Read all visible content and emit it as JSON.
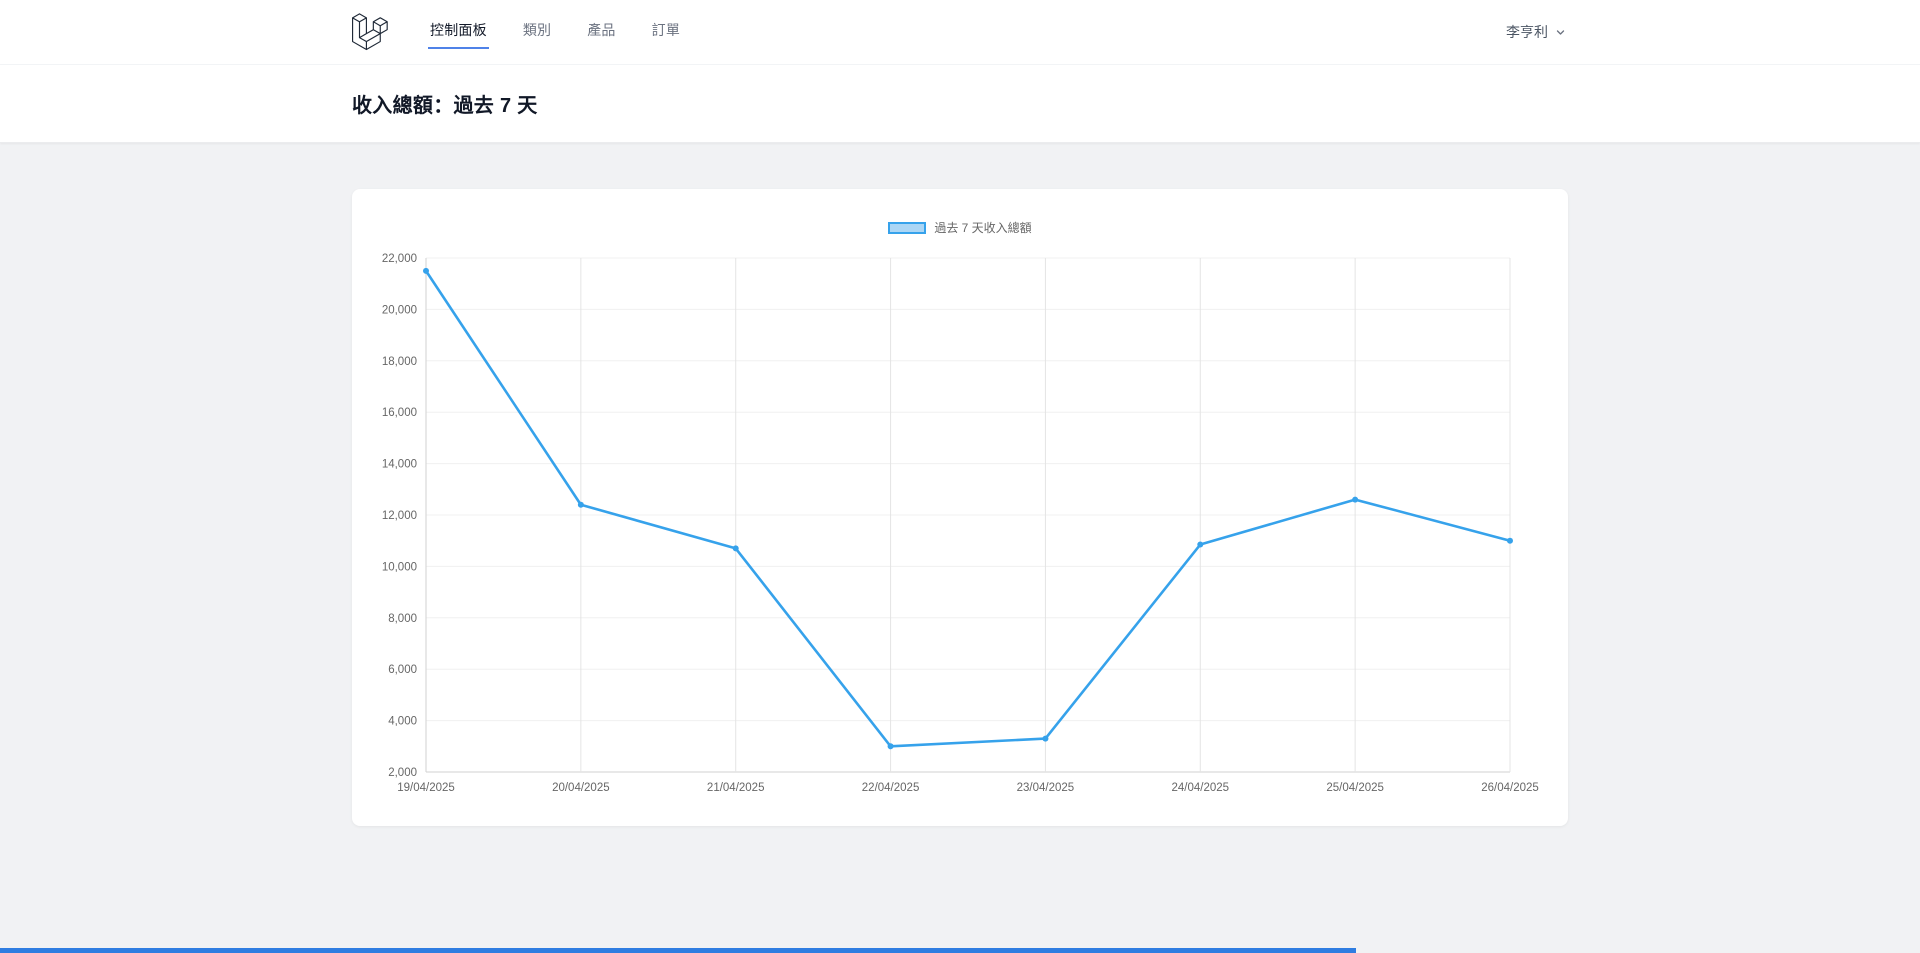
{
  "colors": {
    "accent": "#4f82e8",
    "line": "#36A2EB",
    "legend_fill": "#ABD6F5",
    "bottom_bar": "#2f7de1",
    "page_bg": "#f1f2f4"
  },
  "nav": {
    "logo": "laravel-logo",
    "items": [
      {
        "label": "控制面板",
        "active": true
      },
      {
        "label": "類別",
        "active": false
      },
      {
        "label": "產品",
        "active": false
      },
      {
        "label": "訂單",
        "active": false
      }
    ],
    "user": {
      "name": "李亨利"
    }
  },
  "header": {
    "title": "收入總額：過去 7 天"
  },
  "chart_data": {
    "type": "line",
    "title": "",
    "xlabel": "",
    "ylabel": "",
    "legend_position": "top",
    "grid": true,
    "line_color": "#36A2EB",
    "point_radius": 3,
    "categories": [
      "19/04/2025",
      "20/04/2025",
      "21/04/2025",
      "22/04/2025",
      "23/04/2025",
      "24/04/2025",
      "25/04/2025",
      "26/04/2025"
    ],
    "series": [
      {
        "name": "過去 7 天收入總額",
        "values": [
          21500,
          12400,
          10700,
          3000,
          3300,
          10850,
          12600,
          11000
        ]
      }
    ],
    "ylim": [
      2000,
      22000
    ],
    "ytick_step": 2000
  }
}
